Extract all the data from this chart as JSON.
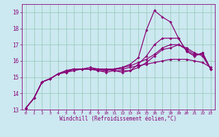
{
  "xlabel": "Windchill (Refroidissement éolien,°C)",
  "ylabel": "",
  "xlim": [
    -0.5,
    23.5
  ],
  "ylim": [
    13,
    19.5
  ],
  "yticks": [
    13,
    14,
    15,
    16,
    17,
    18,
    19
  ],
  "xticks": [
    0,
    1,
    2,
    3,
    4,
    5,
    6,
    7,
    8,
    9,
    10,
    11,
    12,
    13,
    14,
    15,
    16,
    17,
    18,
    19,
    20,
    21,
    22,
    23
  ],
  "bg_color": "#cce8f0",
  "line_color": "#880077",
  "grid_color": "#99ccbb",
  "lines": [
    {
      "x": [
        0,
        1,
        2,
        3,
        4,
        5,
        6,
        7,
        8,
        9,
        10,
        11,
        12,
        13,
        14,
        15,
        16,
        17,
        18,
        19,
        20,
        21,
        22,
        23
      ],
      "y": [
        13.1,
        13.7,
        14.7,
        14.9,
        15.2,
        15.3,
        15.4,
        15.5,
        15.5,
        15.5,
        15.5,
        15.5,
        15.5,
        15.6,
        15.7,
        15.8,
        15.9,
        16.0,
        16.1,
        16.1,
        16.1,
        16.0,
        15.9,
        15.6
      ]
    },
    {
      "x": [
        0,
        1,
        2,
        3,
        4,
        5,
        6,
        7,
        8,
        9,
        10,
        11,
        12,
        13,
        14,
        15,
        16,
        17,
        18,
        19,
        20,
        21,
        22,
        23
      ],
      "y": [
        13.1,
        13.7,
        14.7,
        14.9,
        15.2,
        15.3,
        15.5,
        15.5,
        15.6,
        15.5,
        15.4,
        15.5,
        15.6,
        15.7,
        15.9,
        16.1,
        16.4,
        16.8,
        17.0,
        17.0,
        16.7,
        16.4,
        16.4,
        15.5
      ]
    },
    {
      "x": [
        0,
        1,
        2,
        3,
        4,
        5,
        6,
        7,
        8,
        9,
        10,
        11,
        12,
        13,
        14,
        15,
        16,
        17,
        18,
        19,
        20,
        21,
        22,
        23
      ],
      "y": [
        13.1,
        13.7,
        14.7,
        14.9,
        15.2,
        15.4,
        15.5,
        15.5,
        15.5,
        15.4,
        15.3,
        15.4,
        15.4,
        15.4,
        15.8,
        16.3,
        17.0,
        17.4,
        17.4,
        17.4,
        16.6,
        16.3,
        16.5,
        15.5
      ]
    },
    {
      "x": [
        0,
        1,
        2,
        3,
        4,
        5,
        6,
        7,
        8,
        9,
        10,
        11,
        12,
        13,
        14,
        15,
        16,
        17,
        18,
        19,
        20,
        21,
        22,
        23
      ],
      "y": [
        13.1,
        13.7,
        14.7,
        14.9,
        15.2,
        15.4,
        15.5,
        15.5,
        15.5,
        15.5,
        15.5,
        15.4,
        15.3,
        15.4,
        15.6,
        15.9,
        16.3,
        16.7,
        16.8,
        17.0,
        16.8,
        16.5,
        16.3,
        15.5
      ]
    },
    {
      "x": [
        0,
        1,
        2,
        3,
        4,
        5,
        6,
        7,
        8,
        9,
        10,
        11,
        12,
        13,
        14,
        15,
        16,
        17,
        18,
        19,
        20,
        21,
        22,
        23
      ],
      "y": [
        13.1,
        13.7,
        14.7,
        14.9,
        15.2,
        15.4,
        15.5,
        15.5,
        15.5,
        15.4,
        15.4,
        15.5,
        15.6,
        15.8,
        16.2,
        17.9,
        19.1,
        18.7,
        18.4,
        17.4,
        16.6,
        16.3,
        16.5,
        15.5
      ]
    }
  ]
}
